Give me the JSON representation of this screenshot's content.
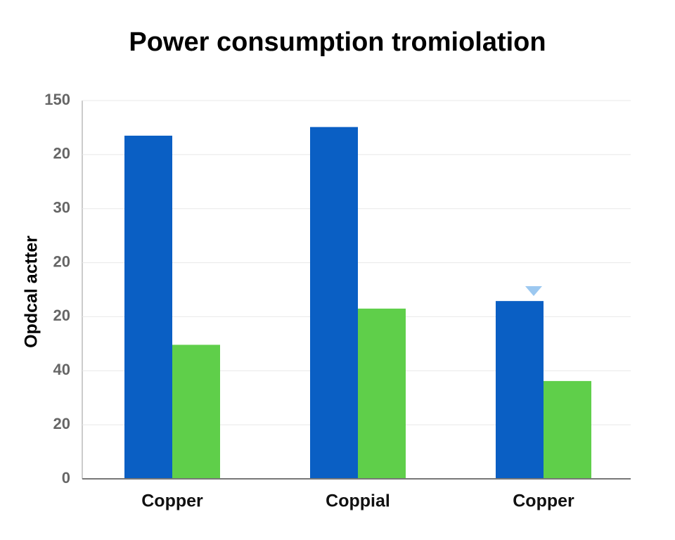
{
  "chart_data": {
    "type": "bar",
    "title": "Power consumption tromiolation",
    "y_label": "Opdcal actter",
    "categories": [
      "Copper",
      "Coppial",
      "Copper"
    ],
    "series": [
      {
        "color": "#0a5fc4",
        "values": [
          6.35,
          6.51,
          3.29
        ]
      },
      {
        "color": "#5fcf4a",
        "values": [
          2.48,
          3.15,
          1.81
        ]
      }
    ],
    "ylim": [
      0,
      7
    ],
    "yticks": [
      0,
      {
        "value": 1,
        "label": "20"
      },
      {
        "value": 2,
        "label": "40"
      },
      {
        "value": 3,
        "label": "20"
      },
      {
        "value": 4,
        "label": "20"
      },
      {
        "value": 5,
        "label": "30"
      },
      {
        "value": 6,
        "label": "20"
      },
      {
        "value": 7,
        "label": "150"
      }
    ],
    "grid": true
  }
}
